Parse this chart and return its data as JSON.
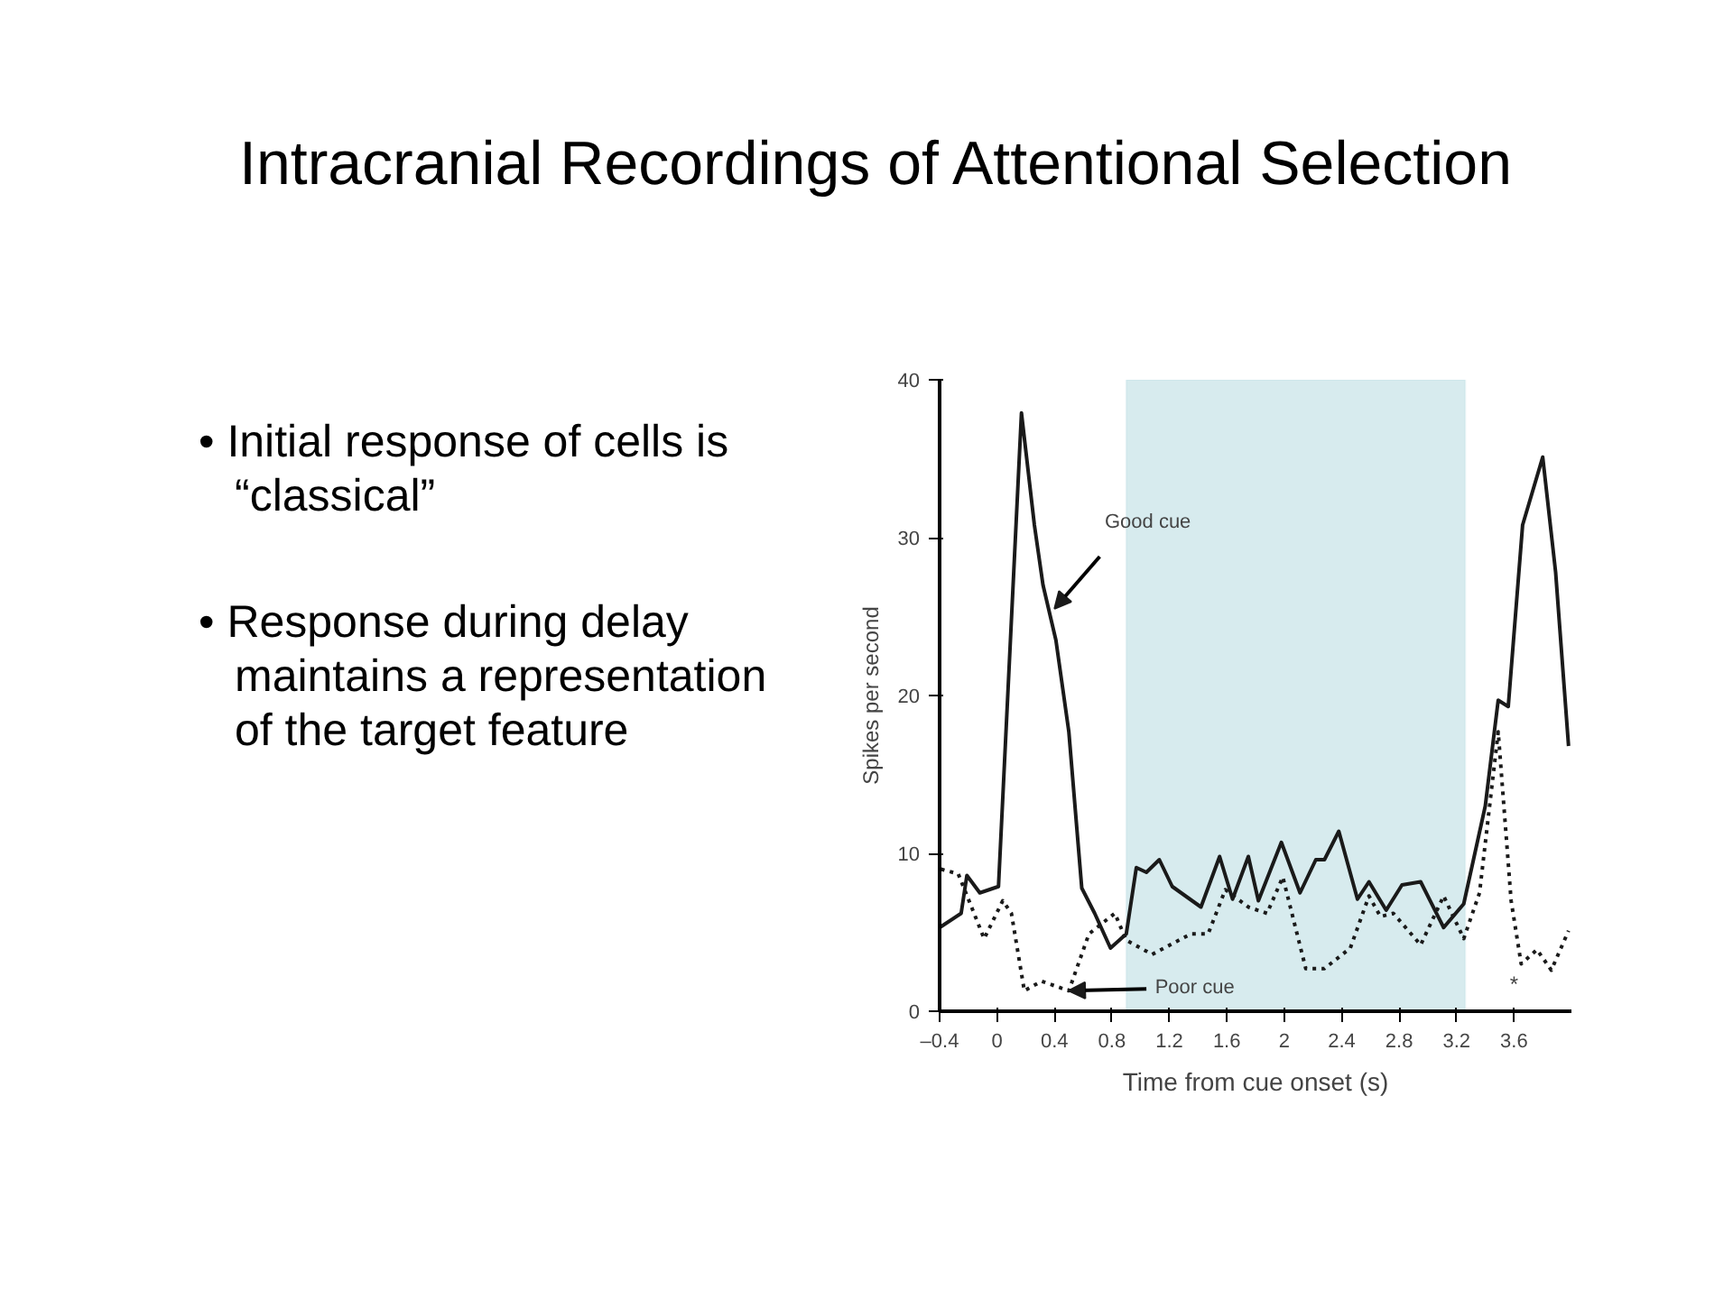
{
  "chart_data": {
    "type": "line",
    "title": "Intracranial Recordings of Attentional Selection",
    "xlabel": "Time from cue onset (s)",
    "ylabel": "Spikes per second",
    "xlim": [
      -0.4,
      4.0
    ],
    "ylim": [
      0,
      40
    ],
    "xticks": [
      {
        "value": -0.4,
        "label": "–0.4"
      },
      0,
      0.4,
      0.8,
      1.2,
      1.6,
      2,
      2.4,
      2.8,
      3.2,
      3.6
    ],
    "yticks": [
      0,
      10,
      20,
      30,
      40
    ],
    "grid": false,
    "series": [
      {
        "color": "#1a1a1a",
        "line_style": "solid",
        "x": [
          -0.4,
          -0.25,
          -0.21,
          -0.12,
          0.01,
          0.17,
          0.26,
          0.32,
          0.41,
          0.5,
          0.59,
          0.68,
          0.79,
          0.9,
          0.97,
          1.04,
          1.13,
          1.22,
          1.42,
          1.55,
          1.64,
          1.75,
          1.82,
          1.98,
          2.11,
          2.22,
          2.28,
          2.38,
          2.51,
          2.59,
          2.71,
          2.82,
          2.95,
          3.11,
          3.25,
          3.4,
          3.49,
          3.56,
          3.66,
          3.8,
          3.89,
          3.98
        ],
        "values": [
          5.3,
          6.2,
          8.6,
          7.5,
          7.9,
          37.9,
          30.8,
          27,
          23.5,
          17.7,
          7.8,
          6.2,
          4.0,
          4.9,
          9.1,
          8.8,
          9.6,
          7.9,
          6.6,
          9.8,
          7.1,
          9.8,
          7.0,
          10.7,
          7.5,
          9.6,
          9.6,
          11.4,
          7.1,
          8.2,
          6.4,
          8.0,
          8.2,
          5.3,
          6.8,
          13,
          19.7,
          19.3,
          30.8,
          35.1,
          27.8,
          16.8
        ]
      },
      {
        "color": "#1a1a1a",
        "line_style": "dotted",
        "x": [
          -0.39,
          -0.27,
          -0.09,
          0.04,
          0.1,
          0.19,
          0.31,
          0.5,
          0.64,
          0.82,
          0.9,
          1.08,
          1.35,
          1.47,
          1.59,
          1.75,
          1.88,
          1.99,
          2.15,
          2.28,
          2.46,
          2.59,
          2.67,
          2.76,
          2.95,
          3.11,
          3.25,
          3.36,
          3.49,
          3.58,
          3.65,
          3.76,
          3.86,
          3.98
        ],
        "values": [
          9.0,
          8.7,
          4.6,
          7.0,
          6.2,
          1.3,
          1.9,
          1.3,
          4.9,
          6.2,
          4.5,
          3.6,
          4.9,
          4.9,
          7.7,
          6.6,
          6.2,
          8.5,
          2.7,
          2.7,
          4.0,
          7.3,
          6.0,
          6.2,
          4.2,
          7.3,
          4.6,
          7.5,
          17.7,
          7.0,
          3.0,
          3.9,
          2.6,
          5.1
        ]
      }
    ],
    "bands": [
      {
        "axis": "x",
        "from": 0.9,
        "to": 3.26,
        "color": "#bcdde3"
      }
    ],
    "annotations": [
      {
        "text": "Good cue",
        "x": 0.4,
        "y": 25.5
      },
      {
        "text": "Poor cue",
        "x": 0.5,
        "y": 1.3
      },
      "*",
      "• Initial response of cells is “classical”",
      "• Response during delay maintains a representation of the target feature"
    ]
  }
}
